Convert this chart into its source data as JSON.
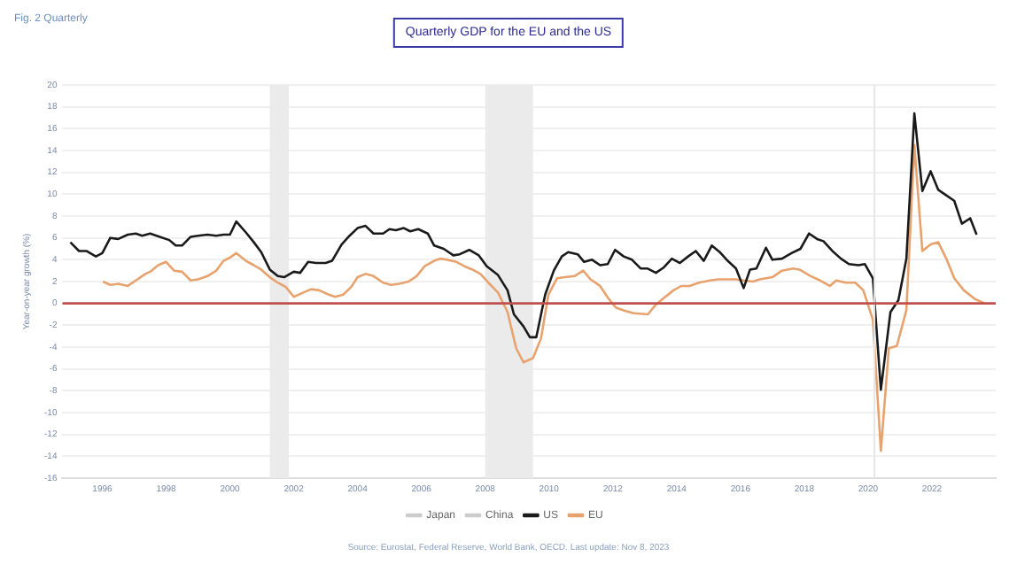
{
  "chart_data": {
    "type": "line",
    "title": "Quarterly GDP for the EU and the US",
    "subtitle": "Fig. 2  Quarterly",
    "ylabel": "Year-on-year growth (%)",
    "annotations": [
      "Source: Eurostat, Federal Reserve, World Bank, OECD. Last update: Nov 8, 2023"
    ],
    "xlim": [
      1994.75,
      2024
    ],
    "xticks": [
      1996,
      1998,
      2000,
      2002,
      2004,
      2006,
      2008,
      2010,
      2012,
      2014,
      2016,
      2018,
      2020,
      2022
    ],
    "ylim": [
      -16,
      20
    ],
    "yticks": [
      -16,
      -14,
      -12,
      -10,
      -8,
      -6,
      -4,
      -2,
      0,
      2,
      4,
      6,
      8,
      10,
      12,
      14,
      16,
      18,
      20
    ],
    "grid": "y",
    "legend": "bottom",
    "marker": "none",
    "line_style": "solid",
    "bands": [
      {
        "axis": "x",
        "from": 2001.25,
        "to": 2001.85,
        "color": "#ebebeb"
      },
      {
        "axis": "x",
        "from": 2008.0,
        "to": 2009.5,
        "color": "#ebebeb"
      }
    ],
    "ref_lines": [
      {
        "axis": "x",
        "value": 2020.2,
        "color": "#e6e6e6"
      },
      {
        "axis": "y",
        "value": 0,
        "color": "#c0504d"
      }
    ],
    "series": [
      {
        "name": "Japan",
        "color": "#cccccc"
      },
      {
        "name": "China",
        "color": "#cccccc"
      },
      {
        "name": "US",
        "color": "#1a1a1a",
        "x": [
          1995.0,
          1995.27,
          1995.5,
          1995.8,
          1996.0,
          1996.25,
          1996.5,
          1996.8,
          1997.05,
          1997.25,
          1997.5,
          1997.8,
          1998.1,
          1998.3,
          1998.5,
          1998.77,
          1999.0,
          1999.3,
          1999.57,
          1999.8,
          2000.0,
          2000.2,
          2000.5,
          2000.75,
          2000.98,
          2001.25,
          2001.5,
          2001.7,
          2002.0,
          2002.2,
          2002.45,
          2002.7,
          2003.0,
          2003.2,
          2003.5,
          2003.75,
          2004.0,
          2004.25,
          2004.5,
          2004.8,
          2005.0,
          2005.2,
          2005.45,
          2005.65,
          2005.9,
          2006.2,
          2006.4,
          2006.7,
          2007.0,
          2007.2,
          2007.5,
          2007.8,
          2008.05,
          2008.4,
          2008.7,
          2008.9,
          2009.2,
          2009.4,
          2009.6,
          2009.88,
          2010.15,
          2010.4,
          2010.6,
          2010.9,
          2011.1,
          2011.35,
          2011.6,
          2011.84,
          2012.07,
          2012.34,
          2012.6,
          2012.87,
          2013.08,
          2013.35,
          2013.6,
          2013.85,
          2014.1,
          2014.36,
          2014.6,
          2014.85,
          2015.1,
          2015.35,
          2015.6,
          2015.86,
          2016.1,
          2016.3,
          2016.5,
          2016.8,
          2017.0,
          2017.3,
          2017.6,
          2017.88,
          2018.15,
          2018.4,
          2018.6,
          2018.88,
          2019.15,
          2019.4,
          2019.7,
          2019.9,
          2020.15,
          2020.4,
          2020.7,
          2020.95,
          2021.2,
          2021.45,
          2021.7,
          2021.96,
          2022.2,
          2022.4,
          2022.7,
          2022.94,
          2023.2,
          2023.4
        ],
        "values": [
          5.6,
          4.8,
          4.8,
          4.3,
          4.6,
          6.0,
          5.9,
          6.3,
          6.4,
          6.2,
          6.4,
          6.1,
          5.8,
          5.3,
          5.3,
          6.1,
          6.2,
          6.3,
          6.2,
          6.3,
          6.3,
          7.5,
          6.5,
          5.6,
          4.7,
          3.1,
          2.5,
          2.4,
          2.9,
          2.8,
          3.8,
          3.7,
          3.7,
          3.9,
          5.4,
          6.2,
          6.9,
          7.1,
          6.4,
          6.4,
          6.8,
          6.7,
          6.9,
          6.6,
          6.8,
          6.4,
          5.3,
          5.0,
          4.4,
          4.5,
          4.9,
          4.4,
          3.4,
          2.6,
          1.2,
          -1.0,
          -2.1,
          -3.1,
          -3.1,
          0.8,
          3.0,
          4.3,
          4.7,
          4.5,
          3.8,
          4.0,
          3.5,
          3.6,
          4.9,
          4.3,
          4.0,
          3.2,
          3.2,
          2.8,
          3.3,
          4.1,
          3.7,
          4.3,
          4.8,
          3.9,
          5.3,
          4.7,
          3.9,
          3.2,
          1.4,
          3.1,
          3.2,
          5.1,
          4.0,
          4.1,
          4.6,
          5.0,
          6.4,
          5.9,
          5.7,
          4.8,
          4.1,
          3.6,
          3.5,
          3.6,
          2.3,
          -7.9,
          -0.8,
          0.3,
          4.1,
          17.4,
          10.3,
          12.1,
          10.4,
          10.0,
          9.4,
          7.3,
          7.8,
          6.3
        ]
      },
      {
        "name": "EU",
        "color": "#e8a26e",
        "x": [
          1996.02,
          1996.25,
          1996.5,
          1996.8,
          1997.05,
          1997.35,
          1997.5,
          1997.75,
          1998.0,
          1998.25,
          1998.5,
          1998.77,
          1999.0,
          1999.3,
          1999.57,
          1999.8,
          2000.0,
          2000.2,
          2000.5,
          2000.75,
          2000.98,
          2001.25,
          2001.5,
          2001.75,
          2002.0,
          2002.3,
          2002.55,
          2002.8,
          2003.1,
          2003.3,
          2003.55,
          2003.8,
          2004.0,
          2004.25,
          2004.5,
          2004.8,
          2005.05,
          2005.3,
          2005.6,
          2005.85,
          2006.1,
          2006.4,
          2006.6,
          2006.8,
          2007.1,
          2007.35,
          2007.6,
          2007.85,
          2008.1,
          2008.4,
          2008.7,
          2008.97,
          2009.2,
          2009.5,
          2009.75,
          2009.98,
          2010.25,
          2010.5,
          2010.8,
          2011.07,
          2011.3,
          2011.6,
          2011.85,
          2012.1,
          2012.4,
          2012.66,
          2013.1,
          2013.35,
          2013.6,
          2013.9,
          2014.15,
          2014.4,
          2014.7,
          2015.05,
          2015.3,
          2015.85,
          2016.1,
          2016.4,
          2016.6,
          2017.0,
          2017.3,
          2017.65,
          2017.85,
          2018.2,
          2018.5,
          2018.8,
          2019.0,
          2019.3,
          2019.6,
          2019.85,
          2020.15,
          2020.4,
          2020.65,
          2020.9,
          2021.2,
          2021.45,
          2021.7,
          2021.96,
          2022.2,
          2022.45,
          2022.7,
          2023.0,
          2023.35,
          2023.65
        ],
        "values": [
          2.0,
          1.7,
          1.8,
          1.6,
          2.1,
          2.7,
          2.9,
          3.5,
          3.8,
          3.0,
          2.9,
          2.1,
          2.2,
          2.5,
          3.0,
          3.9,
          4.2,
          4.6,
          3.9,
          3.5,
          3.1,
          2.4,
          1.9,
          1.5,
          0.6,
          1.0,
          1.3,
          1.2,
          0.8,
          0.6,
          0.8,
          1.5,
          2.4,
          2.7,
          2.5,
          1.9,
          1.7,
          1.8,
          2.0,
          2.5,
          3.4,
          3.9,
          4.1,
          4.0,
          3.8,
          3.4,
          3.1,
          2.7,
          1.9,
          1.0,
          -0.8,
          -4.1,
          -5.4,
          -5.0,
          -3.2,
          0.8,
          2.3,
          2.4,
          2.5,
          3.0,
          2.2,
          1.6,
          0.5,
          -0.4,
          -0.7,
          -0.9,
          -1.0,
          -0.1,
          0.5,
          1.2,
          1.6,
          1.6,
          1.9,
          2.1,
          2.2,
          2.2,
          2.1,
          2.0,
          2.2,
          2.4,
          3.0,
          3.2,
          3.1,
          2.5,
          2.1,
          1.6,
          2.1,
          1.9,
          1.9,
          1.2,
          -1.5,
          -13.5,
          -4.1,
          -3.9,
          -0.6,
          14.5,
          4.8,
          5.4,
          5.6,
          4.1,
          2.3,
          1.2,
          0.4,
          0.0
        ]
      }
    ]
  }
}
